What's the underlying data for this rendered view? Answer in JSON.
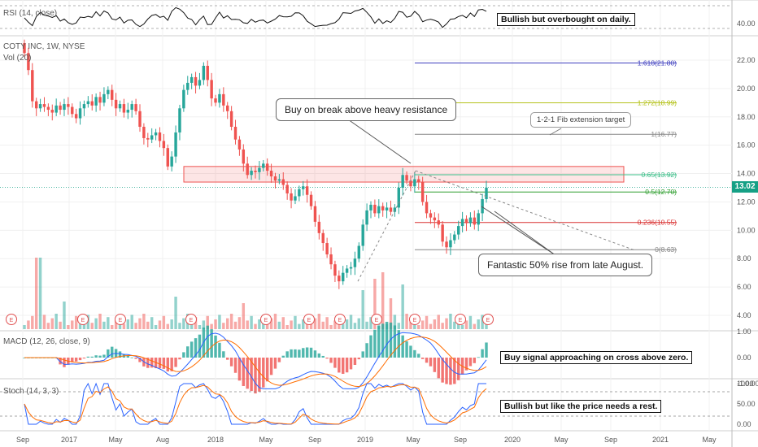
{
  "symbol_label": "COTY INC, 1W, NYSE",
  "vol_label": "Vol (20)",
  "rsi_label": "RSI (14, close)",
  "macd_label": "MACD (12, 26, close, 9)",
  "stoch_label": "Stoch (14, 3, 3)",
  "current_price": "13.02",
  "colors": {
    "up": "#26a69a",
    "down": "#ef5350",
    "accent_badge": "#16a085"
  },
  "notes": {
    "rsi": "Bullish but overbought on daily.",
    "macd": "Buy signal approaching on cross above zero.",
    "stoch": "Bullish but like the price needs a rest."
  },
  "callouts": {
    "resistance": "Buy on break above heavy resistance",
    "rise": "Fantastic 50% rise from late August.",
    "fib_target": "1-2-1 Fib extension target"
  },
  "chart_data": {
    "type": "candlestick",
    "title": "COTY INC, 1W, NYSE",
    "x_ticks": [
      "Sep",
      "2017",
      "May",
      "Aug",
      "2018",
      "May",
      "Sep",
      "2019",
      "May",
      "Sep",
      "2020",
      "May",
      "Sep",
      "2021",
      "May"
    ],
    "price_axis": {
      "ylim": [
        3,
        23
      ],
      "ticks": [
        "22.00",
        "20.00",
        "18.00",
        "16.00",
        "14.00",
        "12.00",
        "10.00",
        "8.00",
        "6.00",
        "4.00"
      ]
    },
    "rsi_axis_ticks": [
      "40.00"
    ],
    "macd_axis_ticks": [
      "1.00",
      "0.00",
      "-1.00"
    ],
    "stoch_axis_ticks": [
      "100.00",
      "50.00",
      "0.00"
    ],
    "fib_levels": [
      {
        "label": "1.618(21.80)",
        "value": 21.8,
        "color": "#3f3fbf"
      },
      {
        "label": "1.272(18.99)",
        "value": 18.99,
        "color": "#b5c21b"
      },
      {
        "label": "1(16.77)",
        "value": 16.77,
        "color": "#888888"
      },
      {
        "label": "0.65(13.92)",
        "value": 13.92,
        "color": "#3dbf8a"
      },
      {
        "label": "0.5(12.70)",
        "value": 12.7,
        "color": "#2e9e2e"
      },
      {
        "label": "0.236(10.55)",
        "value": 10.55,
        "color": "#d93030"
      },
      {
        "label": "0(8.63)",
        "value": 8.63,
        "color": "#888888"
      }
    ],
    "resistance_zone": [
      13.4,
      14.5
    ],
    "weekly_close": [
      22.5,
      21.3,
      19.1,
      18.6,
      18.9,
      18.7,
      18.5,
      18.3,
      18.8,
      18.5,
      18.9,
      18.7,
      18.2,
      17.9,
      18.6,
      18.9,
      19.1,
      18.8,
      19.4,
      19.0,
      19.6,
      19.9,
      19.2,
      18.6,
      18.9,
      18.3,
      18.5,
      18.9,
      18.4,
      17.3,
      16.5,
      16.4,
      16.7,
      16.9,
      16.3,
      15.8,
      14.5,
      15.2,
      16.9,
      18.6,
      19.9,
      20.4,
      20.8,
      20.2,
      20.6,
      21.6,
      20.6,
      19.3,
      19.0,
      19.6,
      18.8,
      18.4,
      17.3,
      16.4,
      15.7,
      14.7,
      13.9,
      14.2,
      14.1,
      14.4,
      14.7,
      14.2,
      13.8,
      13.5,
      13.6,
      13.2,
      12.6,
      12.1,
      12.4,
      12.9,
      13.1,
      12.5,
      11.7,
      10.6,
      9.8,
      9.1,
      8.3,
      7.6,
      6.8,
      6.4,
      7.0,
      7.3,
      7.4,
      8.0,
      8.9,
      10.4,
      11.4,
      11.8,
      11.2,
      11.7,
      11.4,
      11.6,
      11.3,
      11.6,
      13.0,
      13.9,
      13.5,
      13.1,
      13.6,
      13.4,
      12.0,
      11.2,
      10.9,
      10.7,
      10.4,
      9.2,
      8.8,
      9.3,
      9.7,
      10.3,
      10.8,
      10.5,
      10.9,
      10.4,
      11.2,
      12.2,
      13.0
    ],
    "stoch_k_recent": 88,
    "stoch_d_recent": 82
  }
}
